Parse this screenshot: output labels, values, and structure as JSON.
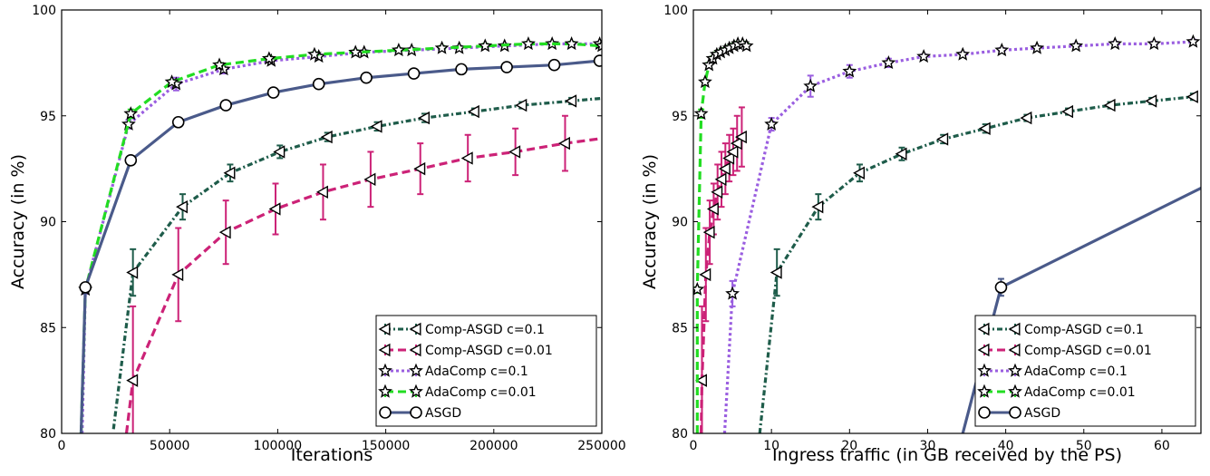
{
  "chart_data": [
    {
      "type": "line",
      "xlabel": "Iterations",
      "ylabel": "Accuracy (in %)",
      "xlim": [
        0,
        250000
      ],
      "ylim": [
        80,
        100
      ],
      "xticks": [
        "0",
        "50000",
        "100000",
        "150000",
        "200000",
        "250000"
      ],
      "yticks": [
        "80",
        "85",
        "90",
        "95",
        "100"
      ],
      "legend_position": "lower-right",
      "series": [
        {
          "name": "Comp-ASGD c=0.1",
          "color": "#1e5c4a",
          "marker": "triangle-left",
          "style": "dash-dot",
          "lead_in": [
            [
              24000,
              80.2
            ]
          ],
          "points": [
            [
              33000,
              87.6
            ],
            [
              56000,
              90.7
            ],
            [
              78000,
              92.3
            ],
            [
              101000,
              93.3
            ],
            [
              123000,
              94.0
            ],
            [
              146000,
              94.5
            ],
            [
              168000,
              94.9
            ],
            [
              191000,
              95.2
            ],
            [
              213000,
              95.5
            ],
            [
              236000,
              95.7
            ],
            [
              258000,
              95.9
            ]
          ],
          "errors": [
            1.1,
            0.6,
            0.4,
            0.3,
            0.2,
            0.2,
            0.2,
            0.15,
            0.15,
            0.15,
            0.15
          ]
        },
        {
          "name": "Comp-ASGD c=0.01",
          "color": "#cc2277",
          "marker": "triangle-left",
          "style": "dashed",
          "lead_in": [
            [
              30000,
              80.0
            ]
          ],
          "points": [
            [
              33000,
              82.5
            ],
            [
              54000,
              87.5
            ],
            [
              76000,
              89.5
            ],
            [
              99000,
              90.6
            ],
            [
              121000,
              91.4
            ],
            [
              143000,
              92.0
            ],
            [
              166000,
              92.5
            ],
            [
              188000,
              93.0
            ],
            [
              210000,
              93.3
            ],
            [
              233000,
              93.7
            ],
            [
              255000,
              94.0
            ]
          ],
          "errors": [
            3.5,
            2.2,
            1.5,
            1.2,
            1.3,
            1.3,
            1.2,
            1.1,
            1.1,
            1.3,
            1.4
          ]
        },
        {
          "name": "AdaComp c=0.1",
          "color": "#9a5ee0",
          "marker": "star",
          "style": "dotted",
          "lead_in": [
            [
              9500,
              80.0
            ]
          ],
          "points": [
            [
              11000,
              86.8
            ],
            [
              31000,
              94.6
            ],
            [
              53000,
              96.5
            ],
            [
              75000,
              97.2
            ],
            [
              97000,
              97.6
            ],
            [
              119000,
              97.8
            ],
            [
              140000,
              98.0
            ],
            [
              162000,
              98.1
            ],
            [
              184000,
              98.2
            ],
            [
              205000,
              98.3
            ],
            [
              227000,
              98.4
            ],
            [
              249000,
              98.4
            ]
          ],
          "errors": [
            0.2,
            0.2,
            0.3,
            0.2,
            0.1,
            0.1,
            0.1,
            0.1,
            0.1,
            0.1,
            0.1,
            0.1
          ]
        },
        {
          "name": "AdaComp c=0.01",
          "color": "#22dd22",
          "marker": "star",
          "style": "dashed",
          "lead_in": [
            [
              9000,
              80.0
            ]
          ],
          "points": [
            [
              11000,
              86.8
            ],
            [
              32000,
              95.1
            ],
            [
              51000,
              96.6
            ],
            [
              73000,
              97.4
            ],
            [
              96000,
              97.7
            ],
            [
              117000,
              97.9
            ],
            [
              136000,
              98.0
            ],
            [
              156000,
              98.1
            ],
            [
              176000,
              98.2
            ],
            [
              196000,
              98.3
            ],
            [
              216000,
              98.4
            ],
            [
              236000,
              98.4
            ],
            [
              250000,
              98.3
            ]
          ],
          "errors": [
            0.1,
            0.2,
            0.1,
            0.1,
            0.1,
            0.1,
            0.1,
            0.1,
            0.1,
            0.1,
            0.1,
            0.1,
            0.1
          ]
        },
        {
          "name": "ASGD",
          "color": "#4a5a8a",
          "marker": "circle",
          "style": "solid",
          "lead_in": [
            [
              9000,
              80.0
            ]
          ],
          "points": [
            [
              11000,
              86.9
            ],
            [
              32000,
              92.9
            ],
            [
              54000,
              94.7
            ],
            [
              76000,
              95.5
            ],
            [
              98000,
              96.1
            ],
            [
              119000,
              96.5
            ],
            [
              141000,
              96.8
            ],
            [
              163000,
              97.0
            ],
            [
              185000,
              97.2
            ],
            [
              206000,
              97.3
            ],
            [
              228000,
              97.4
            ],
            [
              249000,
              97.6
            ],
            [
              258000,
              97.6
            ]
          ],
          "errors": [
            0.1,
            0.1,
            0.2,
            0.15,
            0.1,
            0.1,
            0.1,
            0.1,
            0.1,
            0.1,
            0.1,
            0.1,
            0.1
          ]
        }
      ]
    },
    {
      "type": "line",
      "xlabel": "Ingress traffic (in GB received by the PS)",
      "ylabel": "Accuracy (in %)",
      "xlim": [
        0,
        65
      ],
      "ylim": [
        80,
        100
      ],
      "xticks": [
        "0",
        "10",
        "20",
        "30",
        "40",
        "50",
        "60"
      ],
      "yticks": [
        "80",
        "85",
        "90",
        "95",
        "100"
      ],
      "legend_position": "lower-right",
      "series": [
        {
          "name": "Comp-ASGD c=0.1",
          "color": "#1e5c4a",
          "marker": "triangle-left",
          "style": "dash-dot",
          "lead_in": [
            [
              8.5,
              80.0
            ]
          ],
          "points": [
            [
              10.7,
              87.6
            ],
            [
              16.0,
              90.7
            ],
            [
              21.3,
              92.3
            ],
            [
              26.7,
              93.2
            ],
            [
              32.0,
              93.9
            ],
            [
              37.4,
              94.4
            ],
            [
              42.7,
              94.9
            ],
            [
              48.0,
              95.2
            ],
            [
              53.4,
              95.5
            ],
            [
              58.7,
              95.7
            ],
            [
              64.0,
              95.9
            ]
          ],
          "errors": [
            1.1,
            0.6,
            0.4,
            0.3,
            0.2,
            0.2,
            0.15,
            0.15,
            0.15,
            0.15,
            0.15
          ]
        },
        {
          "name": "Comp-ASGD c=0.01",
          "color": "#cc2277",
          "marker": "triangle-left",
          "style": "dashed",
          "lead_in": [
            [
              1.0,
              80.0
            ]
          ],
          "points": [
            [
              1.1,
              82.5
            ],
            [
              1.6,
              87.5
            ],
            [
              2.1,
              89.5
            ],
            [
              2.6,
              90.6
            ],
            [
              3.1,
              91.4
            ],
            [
              3.6,
              92.0
            ],
            [
              4.1,
              92.5
            ],
            [
              4.6,
              93.0
            ],
            [
              5.1,
              93.3
            ],
            [
              5.6,
              93.7
            ],
            [
              6.2,
              94.0
            ]
          ],
          "errors": [
            3.5,
            2.2,
            1.5,
            1.2,
            1.3,
            1.3,
            1.2,
            1.1,
            1.1,
            1.3,
            1.4
          ]
        },
        {
          "name": "AdaComp c=0.1",
          "color": "#9a5ee0",
          "marker": "star",
          "style": "dotted",
          "lead_in": [
            [
              4.0,
              80.0
            ]
          ],
          "points": [
            [
              5.0,
              86.6
            ],
            [
              10.0,
              94.6
            ],
            [
              15.0,
              96.4
            ],
            [
              20.0,
              97.1
            ],
            [
              25.0,
              97.5
            ],
            [
              29.5,
              97.8
            ],
            [
              34.5,
              97.9
            ],
            [
              39.5,
              98.1
            ],
            [
              44.0,
              98.2
            ],
            [
              49.0,
              98.3
            ],
            [
              54.0,
              98.4
            ],
            [
              59.0,
              98.4
            ],
            [
              64.0,
              98.5
            ]
          ],
          "errors": [
            0.6,
            0.3,
            0.5,
            0.3,
            0.2,
            0.1,
            0.1,
            0.1,
            0.1,
            0.1,
            0.1,
            0.1,
            0.1
          ]
        },
        {
          "name": "AdaComp c=0.01",
          "color": "#22dd22",
          "marker": "star",
          "style": "dashed",
          "lead_in": [
            [
              0.5,
              80.0
            ]
          ],
          "points": [
            [
              0.5,
              86.8
            ],
            [
              1.0,
              95.1
            ],
            [
              1.5,
              96.6
            ],
            [
              2.0,
              97.4
            ],
            [
              2.5,
              97.7
            ],
            [
              3.0,
              97.9
            ],
            [
              3.5,
              98.0
            ],
            [
              4.1,
              98.1
            ],
            [
              4.6,
              98.2
            ],
            [
              5.2,
              98.3
            ],
            [
              5.7,
              98.4
            ],
            [
              6.3,
              98.4
            ],
            [
              6.8,
              98.3
            ]
          ],
          "errors": [
            0.1,
            0.2,
            0.1,
            0.1,
            0.1,
            0.1,
            0.1,
            0.1,
            0.1,
            0.1,
            0.1,
            0.1,
            0.1
          ]
        },
        {
          "name": "ASGD",
          "color": "#4a5a8a",
          "marker": "circle",
          "style": "solid",
          "lead_in": [
            [
              34.5,
              80.0
            ]
          ],
          "points": [
            [
              39.4,
              86.9
            ],
            [
              70.0,
              92.5
            ]
          ],
          "errors": [
            0.4,
            0
          ]
        }
      ]
    }
  ]
}
